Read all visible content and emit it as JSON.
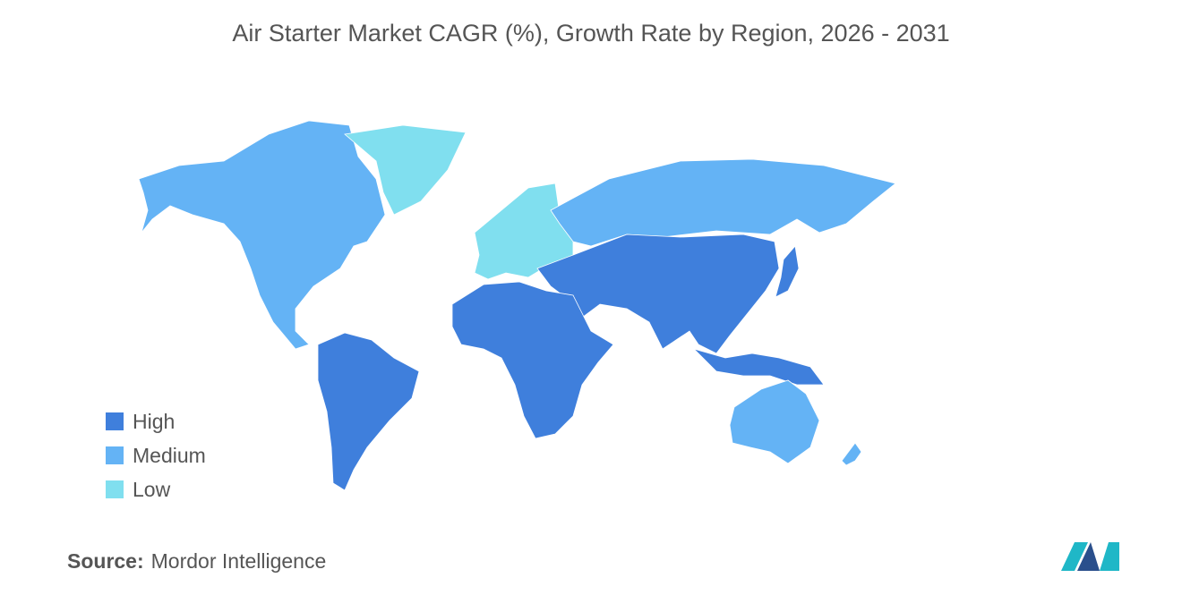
{
  "header": {
    "title": "Air Starter Market CAGR (%), Growth Rate by Region, 2026 - 2031"
  },
  "legend": {
    "items": [
      {
        "label": "High",
        "color": "#3f7fdc"
      },
      {
        "label": "Medium",
        "color": "#64b3f5"
      },
      {
        "label": "Low",
        "color": "#80dfef"
      }
    ]
  },
  "source": {
    "label": "Source:",
    "text": "Mordor Intelligence"
  }
}
